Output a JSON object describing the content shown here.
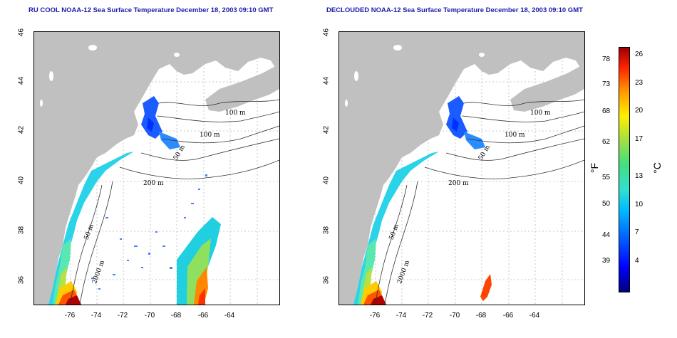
{
  "panels": [
    {
      "title": "RU COOL NOAA-12 Sea Surface Temperature December 18, 2003 09:10 GMT"
    },
    {
      "title": "DECLOUDED NOAA-12 Sea Surface Temperature December 18, 2003 09:10 GMT"
    }
  ],
  "axes": {
    "x_ticks": [
      "-76",
      "-74",
      "-72",
      "-70",
      "-68",
      "-66",
      "-64"
    ],
    "y_ticks": [
      "36",
      "38",
      "40",
      "42",
      "44",
      "46"
    ]
  },
  "contour_labels": [
    "100 m",
    "100 m",
    "50 m",
    "200 m",
    "50 m",
    "2000 m"
  ],
  "colorbar": {
    "fahrenheit_ticks": [
      "78",
      "73",
      "68",
      "62",
      "55",
      "50",
      "44",
      "39"
    ],
    "celsius_ticks": [
      "26",
      "23",
      "20",
      "17",
      "13",
      "10",
      "7",
      "4"
    ],
    "left_unit": "°F",
    "right_unit": "°C"
  },
  "colors": {
    "land": "#c0c0c0",
    "title": "#1c1ca8",
    "cold": "#0000ff",
    "warm": "#ff2000"
  }
}
